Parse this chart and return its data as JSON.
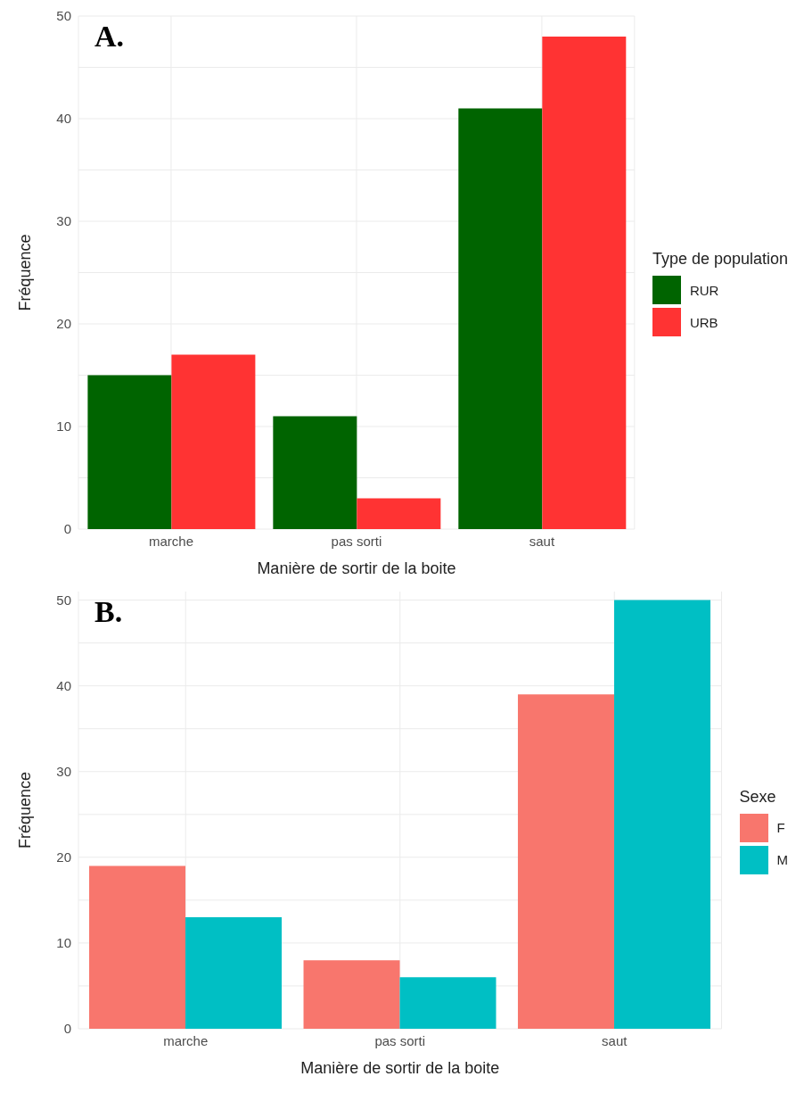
{
  "chart_data": [
    {
      "type": "bar",
      "annotations": [
        "A."
      ],
      "xlabel": "Manière de sortir de la boite",
      "ylabel": "Fréquence",
      "legend_title": "Type de population",
      "categories": [
        "marche",
        "pas sorti",
        "saut"
      ],
      "series": [
        {
          "name": "RUR",
          "color": "#006400",
          "values": [
            15,
            11,
            41
          ]
        },
        {
          "name": "URB",
          "color": "#ff3333",
          "values": [
            17,
            3,
            48
          ]
        }
      ],
      "ylim": [
        0,
        50
      ],
      "yticks": [
        0,
        10,
        20,
        30,
        40,
        50
      ],
      "grid": true,
      "legend": "right"
    },
    {
      "type": "bar",
      "annotations": [
        "B."
      ],
      "xlabel": "Manière de sortir de la boite",
      "ylabel": "Fréquence",
      "legend_title": "Sexe",
      "categories": [
        "marche",
        "pas sorti",
        "saut"
      ],
      "series": [
        {
          "name": "F",
          "color": "#f8766d",
          "values": [
            19,
            8,
            39
          ]
        },
        {
          "name": "M",
          "color": "#00bfc4",
          "values": [
            13,
            6,
            50
          ]
        }
      ],
      "ylim": [
        0,
        51
      ],
      "yticks": [
        0,
        10,
        20,
        30,
        40,
        50
      ],
      "grid": true,
      "legend": "right"
    }
  ]
}
